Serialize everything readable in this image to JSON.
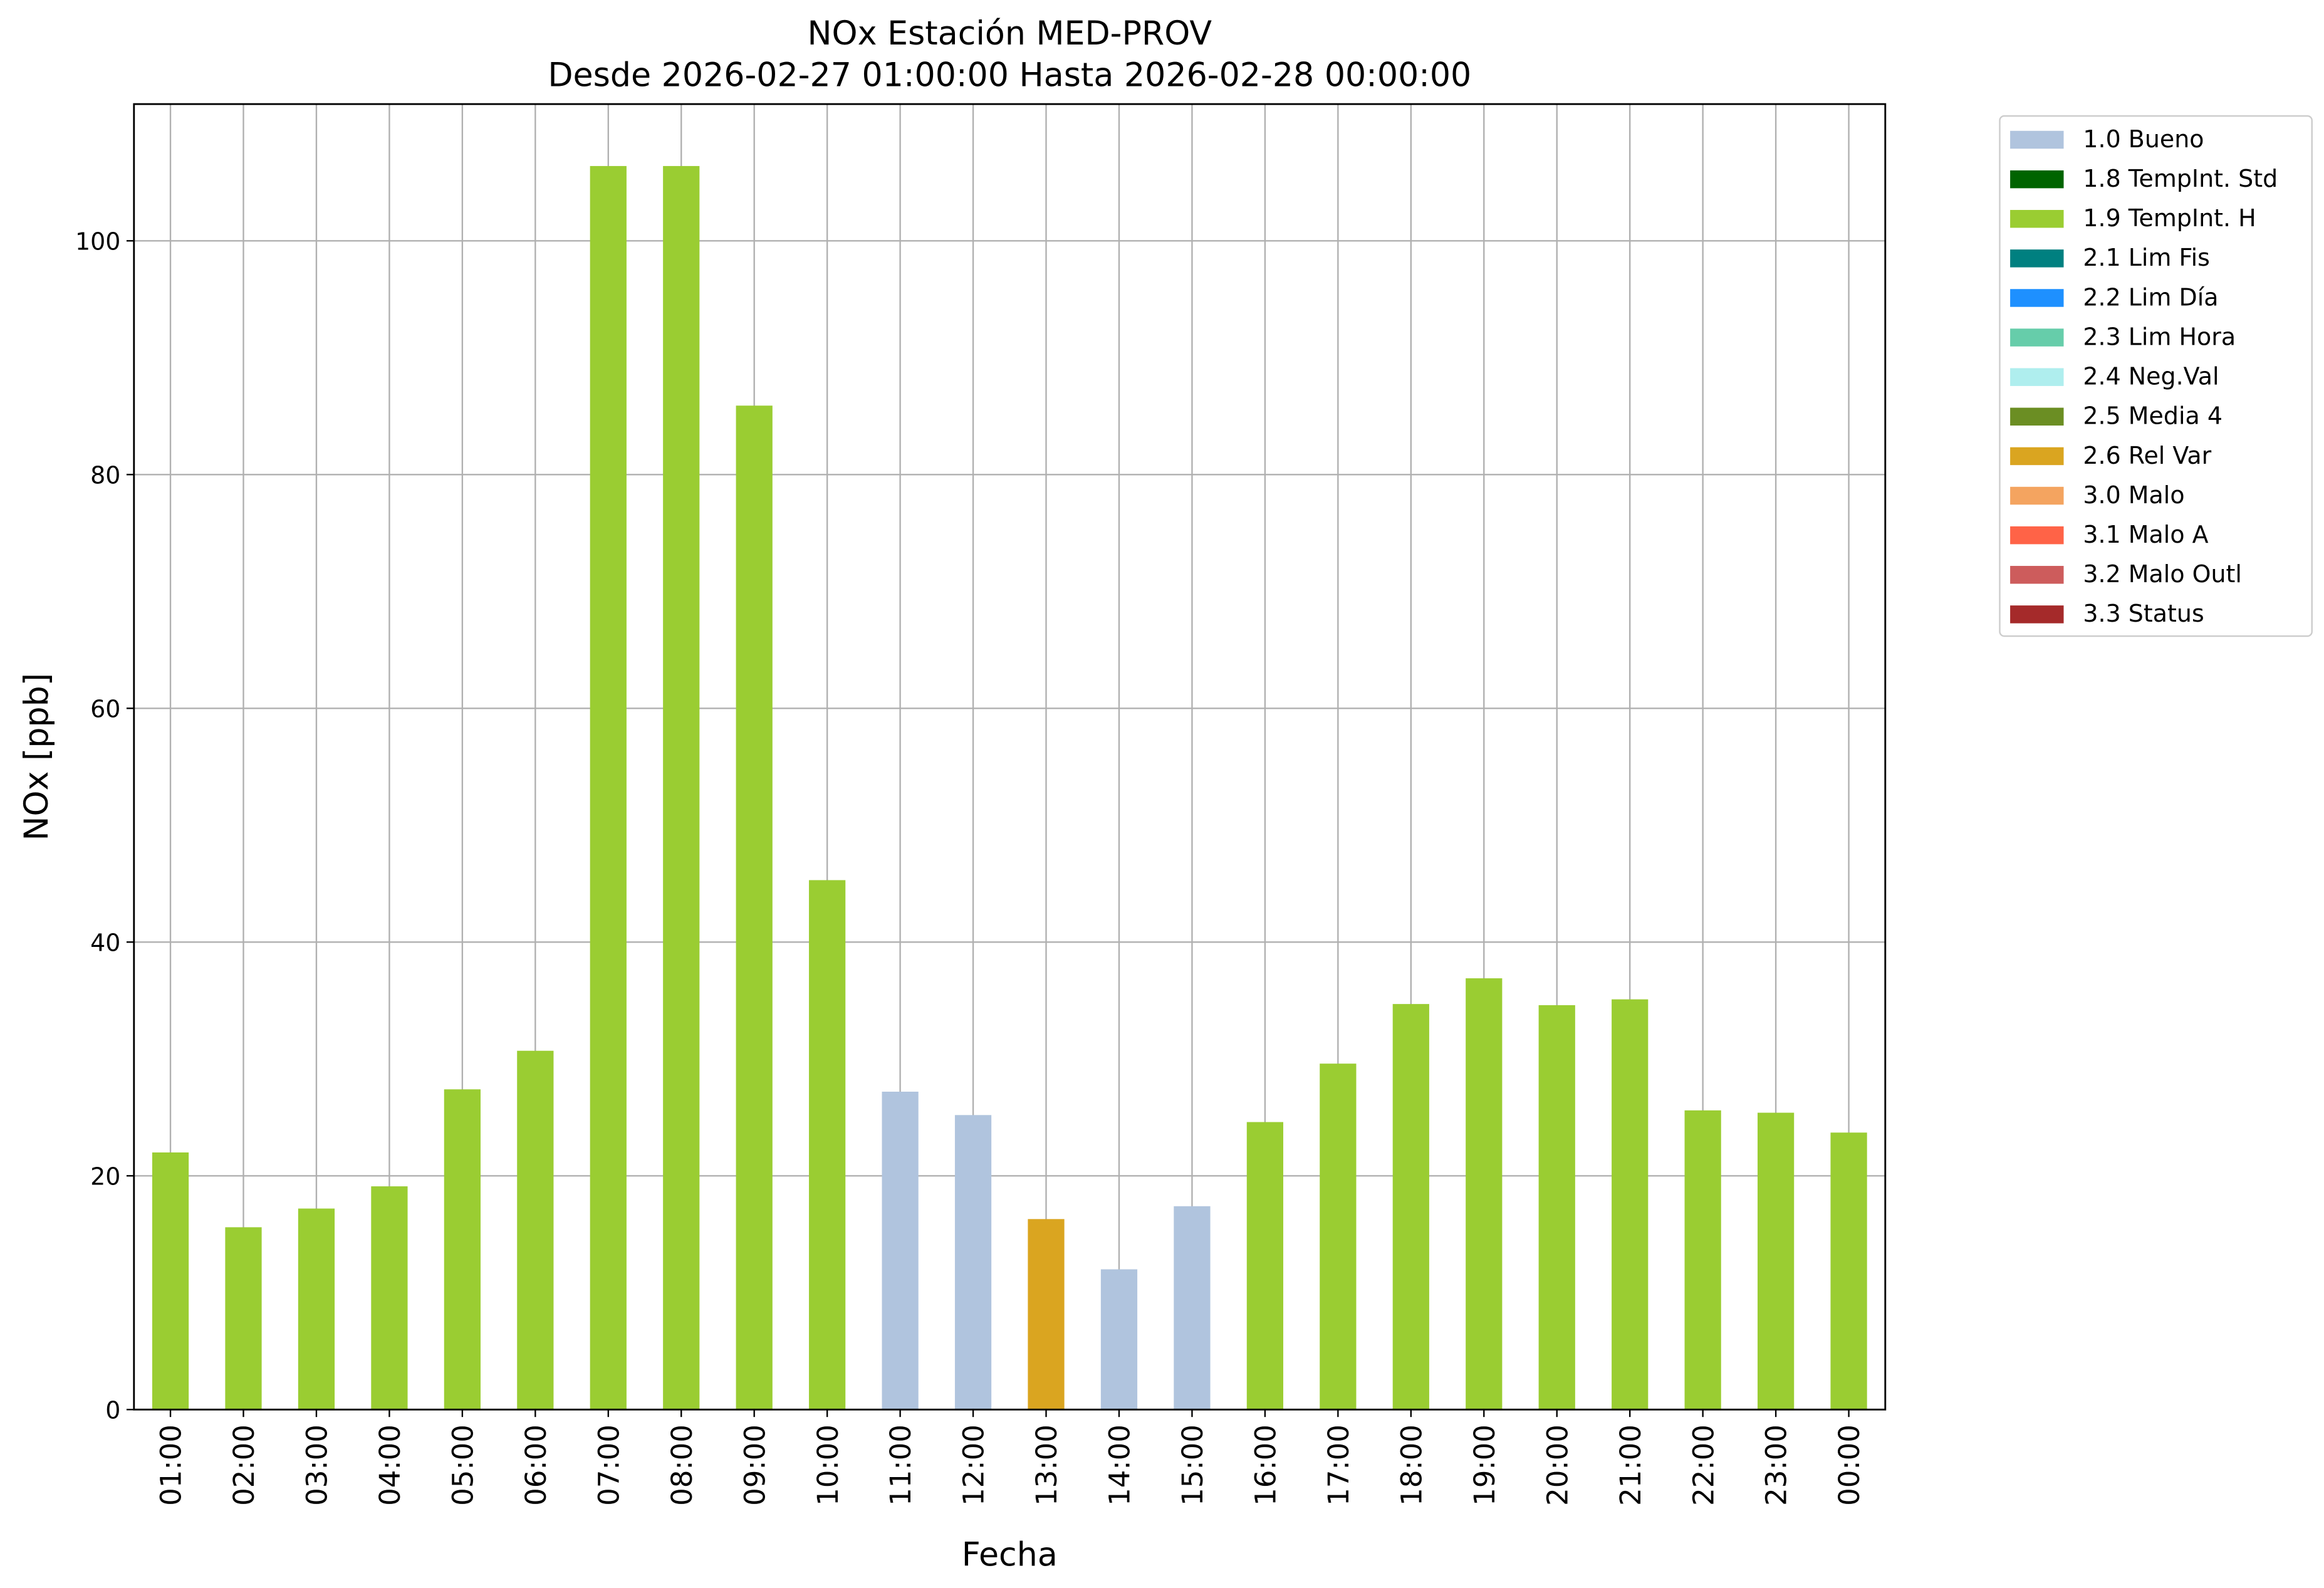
{
  "chart_data": {
    "type": "bar",
    "stacked": true,
    "title": "NOx Estación MED-PROV",
    "subtitle": "Desde 2026-02-27 01:00:00 Hasta 2026-02-28 00:00:00",
    "x_label": "Fecha",
    "y_label": "NOx [ppb]",
    "categories": [
      "01:00",
      "02:00",
      "03:00",
      "04:00",
      "05:00",
      "06:00",
      "07:00",
      "08:00",
      "09:00",
      "10:00",
      "11:00",
      "12:00",
      "13:00",
      "14:00",
      "15:00",
      "16:00",
      "17:00",
      "18:00",
      "19:00",
      "20:00",
      "21:00",
      "22:00",
      "23:00",
      "00:00"
    ],
    "ylim": [
      0,
      111.7
    ],
    "yticks": [
      0,
      20,
      40,
      60,
      80,
      100
    ],
    "grid": true,
    "legend": "outside-right",
    "series": [
      {
        "name": "1.0 Bueno",
        "color": "#b0c4de",
        "values": [
          null,
          null,
          null,
          null,
          null,
          null,
          null,
          null,
          null,
          null,
          27.2,
          25.2,
          null,
          12.0,
          17.4,
          null,
          null,
          null,
          null,
          null,
          null,
          null,
          null,
          null
        ]
      },
      {
        "name": "1.8 TempInt. Std",
        "color": "#006400",
        "values": [
          null,
          null,
          null,
          null,
          null,
          null,
          null,
          null,
          null,
          null,
          null,
          null,
          null,
          null,
          null,
          null,
          null,
          null,
          null,
          null,
          null,
          null,
          null,
          null
        ]
      },
      {
        "name": "1.9 TempInt. H",
        "color": "#9acd32",
        "values": [
          22.0,
          15.6,
          17.2,
          19.1,
          27.4,
          30.7,
          106.4,
          106.4,
          85.9,
          45.3,
          null,
          null,
          null,
          null,
          null,
          24.6,
          29.6,
          34.7,
          36.9,
          34.6,
          35.1,
          25.6,
          25.4,
          23.7
        ]
      },
      {
        "name": "2.1 Lim Fis",
        "color": "#008080",
        "values": [
          null,
          null,
          null,
          null,
          null,
          null,
          null,
          null,
          null,
          null,
          null,
          null,
          null,
          null,
          null,
          null,
          null,
          null,
          null,
          null,
          null,
          null,
          null,
          null
        ]
      },
      {
        "name": "2.2 Lim Día",
        "color": "#1e90ff",
        "values": [
          null,
          null,
          null,
          null,
          null,
          null,
          null,
          null,
          null,
          null,
          null,
          null,
          null,
          null,
          null,
          null,
          null,
          null,
          null,
          null,
          null,
          null,
          null,
          null
        ]
      },
      {
        "name": "2.3 Lim Hora",
        "color": "#66cdaa",
        "values": [
          null,
          null,
          null,
          null,
          null,
          null,
          null,
          null,
          null,
          null,
          null,
          null,
          null,
          null,
          null,
          null,
          null,
          null,
          null,
          null,
          null,
          null,
          null,
          null
        ]
      },
      {
        "name": "2.4 Neg.Val",
        "color": "#afeeee",
        "values": [
          null,
          null,
          null,
          null,
          null,
          null,
          null,
          null,
          null,
          null,
          null,
          null,
          null,
          null,
          null,
          null,
          null,
          null,
          null,
          null,
          null,
          null,
          null,
          null
        ]
      },
      {
        "name": "2.5 Media 4",
        "color": "#6b8e23",
        "values": [
          null,
          null,
          null,
          null,
          null,
          null,
          null,
          null,
          null,
          null,
          null,
          null,
          null,
          null,
          null,
          null,
          null,
          null,
          null,
          null,
          null,
          null,
          null,
          null
        ]
      },
      {
        "name": "2.6 Rel Var",
        "color": "#daa520",
        "values": [
          null,
          null,
          null,
          null,
          null,
          null,
          null,
          null,
          null,
          null,
          null,
          null,
          16.3,
          null,
          null,
          null,
          null,
          null,
          null,
          null,
          null,
          null,
          null,
          null
        ]
      },
      {
        "name": "3.0 Malo",
        "color": "#f4a460",
        "values": [
          null,
          null,
          null,
          null,
          null,
          null,
          null,
          null,
          null,
          null,
          null,
          null,
          null,
          null,
          null,
          null,
          null,
          null,
          null,
          null,
          null,
          null,
          null,
          null
        ]
      },
      {
        "name": "3.1 Malo A",
        "color": "#ff6347",
        "values": [
          null,
          null,
          null,
          null,
          null,
          null,
          null,
          null,
          null,
          null,
          null,
          null,
          null,
          null,
          null,
          null,
          null,
          null,
          null,
          null,
          null,
          null,
          null,
          null
        ]
      },
      {
        "name": "3.2 Malo Outl",
        "color": "#cd5c5c",
        "values": [
          null,
          null,
          null,
          null,
          null,
          null,
          null,
          null,
          null,
          null,
          null,
          null,
          null,
          null,
          null,
          null,
          null,
          null,
          null,
          null,
          null,
          null,
          null,
          null
        ]
      },
      {
        "name": "3.3 Status",
        "color": "#a52a2a",
        "values": [
          null,
          null,
          null,
          null,
          null,
          null,
          null,
          null,
          null,
          null,
          null,
          null,
          null,
          null,
          null,
          null,
          null,
          null,
          null,
          null,
          null,
          null,
          null,
          null
        ]
      }
    ]
  }
}
